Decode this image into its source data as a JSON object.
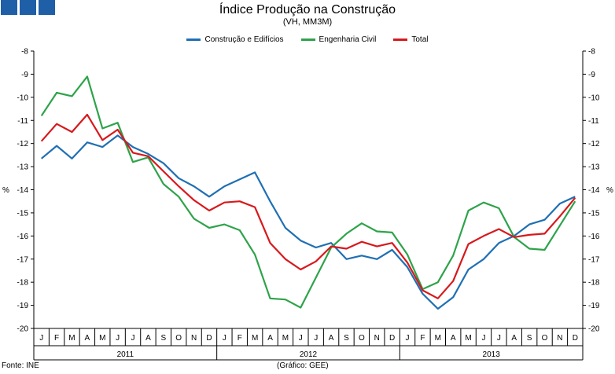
{
  "header": {
    "title": "Índice Produção na Construção",
    "subtitle": "(VH, MM3M)"
  },
  "footer": {
    "source": "Fonte: INE",
    "credit": "(Gráfico: GEE)"
  },
  "colors": {
    "construcao": "#1f6fb4",
    "engenharia": "#2ea34a",
    "total": "#d7191c",
    "logo": "#1f5fa8"
  },
  "chart_data": {
    "type": "line",
    "title": "Índice Produção na Construção",
    "subtitle": "(VH, MM3M)",
    "ylabel_left": "%",
    "ylabel_right": "%",
    "ylim": [
      -20,
      -8
    ],
    "yticks": [
      -8,
      -9,
      -10,
      -11,
      -12,
      -13,
      -14,
      -15,
      -16,
      -17,
      -18,
      -19,
      -20
    ],
    "legend_position": "top-center",
    "grid": false,
    "categories": [
      "J",
      "F",
      "M",
      "A",
      "M",
      "J",
      "J",
      "A",
      "S",
      "O",
      "N",
      "D",
      "J",
      "F",
      "M",
      "A",
      "M",
      "J",
      "J",
      "A",
      "S",
      "O",
      "N",
      "D",
      "J",
      "F",
      "M",
      "A",
      "M",
      "J",
      "J",
      "A",
      "S",
      "O",
      "N",
      "D"
    ],
    "years": [
      "2011",
      "2012",
      "2013"
    ],
    "series": [
      {
        "name": "Construção e Edifícios",
        "color_key": "construcao",
        "values": [
          -12.65,
          -12.1,
          -12.65,
          -11.95,
          -12.15,
          -11.65,
          -12.15,
          -12.45,
          -12.85,
          -13.5,
          -13.85,
          -14.3,
          -13.85,
          -13.55,
          -13.25,
          -14.5,
          -15.65,
          -16.2,
          -16.5,
          -16.3,
          -17.0,
          -16.85,
          -17.0,
          -16.6,
          -17.35,
          -18.5,
          -19.15,
          -18.65,
          -17.45,
          -17.0,
          -16.3,
          -16.0,
          -15.5,
          -15.3,
          -14.6,
          -14.3
        ]
      },
      {
        "name": "Engenharia Civil",
        "color_key": "engenharia",
        "values": [
          -10.8,
          -9.8,
          -9.95,
          -9.1,
          -11.35,
          -11.1,
          -12.8,
          -12.6,
          -13.75,
          -14.3,
          -15.25,
          -15.65,
          -15.5,
          -15.75,
          -16.8,
          -18.7,
          -18.75,
          -19.1,
          -17.8,
          -16.5,
          -15.9,
          -15.45,
          -15.8,
          -15.85,
          -16.8,
          -18.3,
          -18.0,
          -16.85,
          -14.9,
          -14.55,
          -14.8,
          -16.05,
          -16.55,
          -16.6,
          -15.55,
          -14.5
        ]
      },
      {
        "name": "Total",
        "color_key": "total",
        "values": [
          -11.9,
          -11.15,
          -11.5,
          -10.75,
          -11.85,
          -11.4,
          -12.4,
          -12.55,
          -13.2,
          -13.85,
          -14.45,
          -14.9,
          -14.55,
          -14.5,
          -14.75,
          -16.3,
          -17.0,
          -17.45,
          -17.1,
          -16.45,
          -16.55,
          -16.25,
          -16.45,
          -16.3,
          -17.15,
          -18.35,
          -18.7,
          -17.95,
          -16.35,
          -16.0,
          -15.7,
          -16.05,
          -15.95,
          -15.9,
          -15.15,
          -14.35
        ]
      }
    ]
  }
}
